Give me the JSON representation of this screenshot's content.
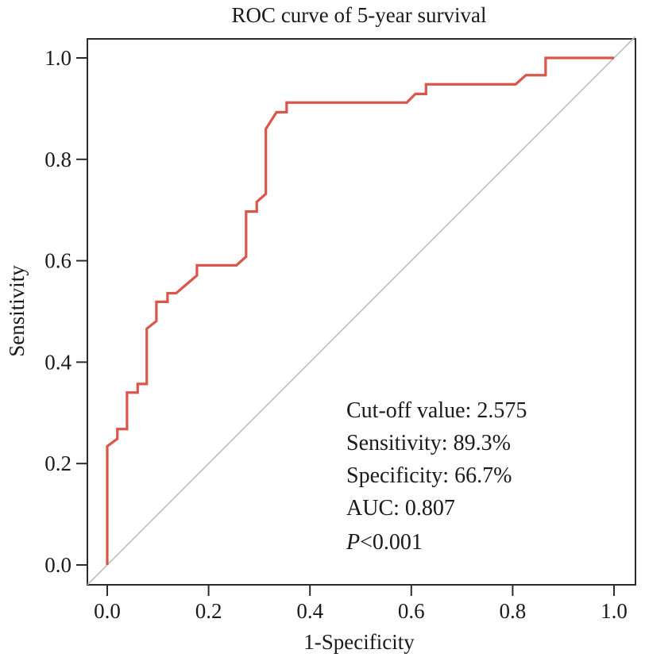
{
  "chart_data": {
    "type": "line",
    "title": "ROC curve of 5-year survival",
    "xlabel": "1-Specificity",
    "ylabel": "Sensitivity",
    "xlim": [
      0.0,
      1.0
    ],
    "ylim": [
      0.0,
      1.0
    ],
    "x_ticks": [
      "0.0",
      "0.2",
      "0.4",
      "0.6",
      "0.8",
      "1.0"
    ],
    "x_tick_values": [
      0.0,
      0.2,
      0.4,
      0.6,
      0.8,
      1.0
    ],
    "y_ticks": [
      "0.0",
      "0.2",
      "0.4",
      "0.6",
      "0.8",
      "1.0"
    ],
    "y_tick_values": [
      0.0,
      0.2,
      0.4,
      0.6,
      0.8,
      1.0
    ],
    "grid": false,
    "legend": "none",
    "series": [
      {
        "name": "ROC curve",
        "color": "#D9574A",
        "x": [
          0.0,
          0.0,
          0.02,
          0.02,
          0.039,
          0.039,
          0.06,
          0.06,
          0.078,
          0.078,
          0.097,
          0.097,
          0.119,
          0.119,
          0.136,
          0.177,
          0.177,
          0.255,
          0.274,
          0.274,
          0.295,
          0.295,
          0.313,
          0.313,
          0.334,
          0.354,
          0.354,
          0.591,
          0.608,
          0.629,
          0.629,
          0.806,
          0.826,
          0.865,
          0.865,
          1.0
        ],
        "y": [
          0.0,
          0.234,
          0.249,
          0.268,
          0.268,
          0.34,
          0.34,
          0.357,
          0.357,
          0.466,
          0.481,
          0.519,
          0.519,
          0.536,
          0.536,
          0.571,
          0.591,
          0.591,
          0.608,
          0.697,
          0.697,
          0.716,
          0.732,
          0.86,
          0.893,
          0.893,
          0.912,
          0.912,
          0.929,
          0.929,
          0.948,
          0.948,
          0.966,
          0.966,
          1.0,
          1.0
        ]
      },
      {
        "name": "Reference line",
        "color": "#BDBDBD",
        "x": [
          -0.039,
          1.042
        ],
        "y": [
          -0.039,
          1.042
        ]
      }
    ],
    "annotations": [
      {
        "label": "Cut-off value: ",
        "value": "2.575"
      },
      {
        "label": "Sensitivity: ",
        "value": "89.3%"
      },
      {
        "label": "Specificity: ",
        "value": "66.7%"
      },
      {
        "label": "AUC: ",
        "value": "0.807"
      },
      {
        "label": "P",
        "value": "<0.001"
      }
    ]
  }
}
